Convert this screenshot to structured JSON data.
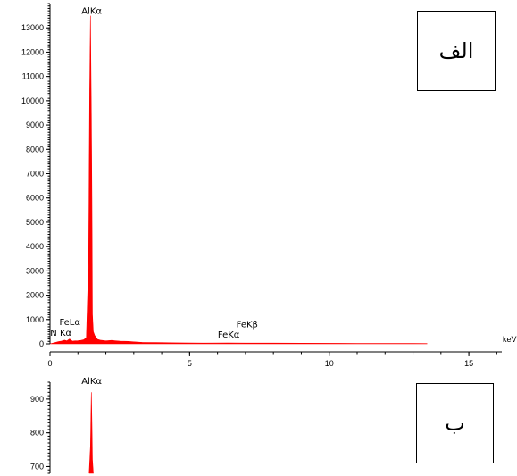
{
  "panels": [
    {
      "label": "الف"
    },
    {
      "label": "ب"
    }
  ],
  "chart_data": [
    {
      "type": "line",
      "title": "",
      "xlabel": "keV",
      "ylabel": "",
      "xlim": [
        0,
        16.5
      ],
      "ylim": [
        0,
        14000
      ],
      "xticks": [
        0,
        5,
        10,
        15
      ],
      "yticks": [
        0,
        1000,
        2000,
        3000,
        4000,
        5000,
        6000,
        7000,
        8000,
        9000,
        10000,
        11000,
        12000,
        13000
      ],
      "color": "#ff0000",
      "grid": false,
      "series": [
        {
          "x": [
            0.0,
            0.2,
            0.3,
            0.4,
            0.52,
            0.6,
            0.7,
            0.8,
            0.9,
            1.0,
            1.1,
            1.2,
            1.3,
            1.38,
            1.42,
            1.45,
            1.48,
            1.5,
            1.52,
            1.55,
            1.6,
            1.7,
            1.8,
            2.0,
            2.2,
            2.5,
            2.8,
            3.0,
            3.3,
            3.8,
            4.5,
            5.5,
            6.4,
            7.0,
            8.0,
            9.0,
            10.0,
            11.0,
            12.0,
            13.0,
            13.5
          ],
          "y": [
            0,
            60,
            90,
            110,
            150,
            120,
            200,
            110,
            120,
            130,
            140,
            160,
            250,
            3300,
            10400,
            13500,
            9300,
            6000,
            1200,
            500,
            350,
            180,
            150,
            120,
            140,
            110,
            100,
            80,
            60,
            50,
            40,
            30,
            35,
            30,
            28,
            25,
            22,
            20,
            18,
            15,
            10
          ]
        }
      ],
      "annotations": [
        {
          "text": "AlKα",
          "x": 1.49,
          "y": 13500
        },
        {
          "text": "FeLα",
          "x": 0.71,
          "y": 700
        },
        {
          "text": "N Kα",
          "x": 0.39,
          "y": 250
        },
        {
          "text": "FeKβ",
          "x": 7.06,
          "y": 600
        },
        {
          "text": "FeKα",
          "x": 6.4,
          "y": 180
        }
      ]
    },
    {
      "type": "line",
      "title": "",
      "xlabel": "",
      "ylabel": "",
      "xlim": [
        0,
        16.5
      ],
      "ylim": [
        680,
        950
      ],
      "yticks": [
        700,
        800,
        900
      ],
      "color": "#ff0000",
      "grid": false,
      "series": [
        {
          "x": [
            1.4,
            1.45,
            1.48,
            1.5,
            1.52,
            1.55
          ],
          "y": [
            680,
            760,
            920,
            830,
            720,
            680
          ]
        }
      ],
      "annotations": [
        {
          "text": "AlKα",
          "x": 1.49,
          "y": 940
        }
      ]
    }
  ]
}
